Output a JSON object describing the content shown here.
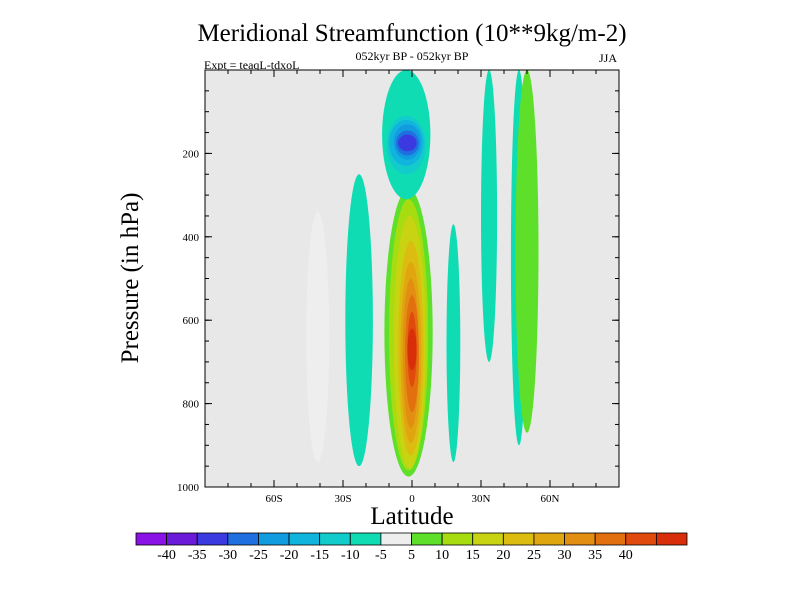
{
  "chart_data": {
    "type": "heatmap",
    "title": "Meridional Streamfunction (10**9kg/m-2)",
    "subtitle": "052kyr BP - 052kyr BP",
    "left_annotation": "Expt = teaqL-tdxoL",
    "right_annotation": "JJA",
    "xlabel": "Latitude",
    "ylabel": "Pressure (in hPa)",
    "xlim": [
      -90,
      90
    ],
    "ylim": [
      1000,
      0
    ],
    "x_ticks": [
      {
        "value": -60,
        "label": "60S"
      },
      {
        "value": -30,
        "label": "30S"
      },
      {
        "value": 0,
        "label": "0"
      },
      {
        "value": 30,
        "label": "30N"
      },
      {
        "value": 60,
        "label": "60N"
      }
    ],
    "y_ticks": [
      {
        "value": 200,
        "label": "200"
      },
      {
        "value": 400,
        "label": "400"
      },
      {
        "value": 600,
        "label": "600"
      },
      {
        "value": 800,
        "label": "800"
      },
      {
        "value": 1000,
        "label": "1000"
      }
    ],
    "background_color": "#e8e8e8",
    "colorbar": {
      "colors": [
        "#8a12e6",
        "#6a1ad8",
        "#3a3ae0",
        "#1f6fe0",
        "#129ce0",
        "#10b4dc",
        "#12cccc",
        "#10dcb4",
        "#eeeeee",
        "#5ee02a",
        "#a6dc10",
        "#c8d412",
        "#dcbc10",
        "#e0a610",
        "#e28e12",
        "#e2700e",
        "#e04a0c",
        "#d82e0a"
      ],
      "labels": [
        "-40",
        "-35",
        "-30",
        "-25",
        "-20",
        "-15",
        "-10",
        "-5",
        "5",
        "10",
        "15",
        "20",
        "25",
        "30",
        "35",
        "40"
      ]
    },
    "cells": [
      {
        "name": "cell-sh-midlat-1",
        "lat": [
          -46,
          -36
        ],
        "p": [
          340,
          940
        ],
        "level": 0
      },
      {
        "name": "cell-sh-subtrop-neg",
        "lat": [
          -29,
          -17
        ],
        "p": [
          250,
          950
        ],
        "level": -1
      },
      {
        "name": "cell-eq-pos-outer",
        "lat": [
          -12,
          9
        ],
        "p": [
          285,
          975
        ],
        "level": 1
      },
      {
        "name": "cell-eq-pos-2",
        "lat": [
          -10,
          7
        ],
        "p": [
          310,
          960
        ],
        "level": 2
      },
      {
        "name": "cell-eq-pos-3",
        "lat": [
          -8,
          6
        ],
        "p": [
          350,
          955
        ],
        "level": 3
      },
      {
        "name": "cell-eq-pos-4",
        "lat": [
          -6,
          5
        ],
        "p": [
          410,
          925
        ],
        "level": 4
      },
      {
        "name": "cell-eq-pos-5",
        "lat": [
          -5,
          4
        ],
        "p": [
          460,
          895
        ],
        "level": 5
      },
      {
        "name": "cell-eq-pos-6",
        "lat": [
          -4,
          3
        ],
        "p": [
          500,
          860
        ],
        "level": 6
      },
      {
        "name": "cell-eq-pos-7",
        "lat": [
          -3,
          3
        ],
        "p": [
          540,
          820
        ],
        "level": 7
      },
      {
        "name": "cell-eq-pos-8",
        "lat": [
          -2,
          2
        ],
        "p": [
          580,
          760
        ],
        "level": 8
      },
      {
        "name": "cell-eq-pos-9",
        "lat": [
          -2,
          2
        ],
        "p": [
          620,
          720
        ],
        "level": 9
      },
      {
        "name": "cell-upper-neg-outer",
        "lat": [
          -13,
          8
        ],
        "p": [
          0,
          310
        ],
        "level": -1
      },
      {
        "name": "cell-upper-neg-2",
        "lat": [
          -11,
          6
        ],
        "p": [
          110,
          250
        ],
        "level": -2
      },
      {
        "name": "cell-upper-neg-3",
        "lat": [
          -10,
          5
        ],
        "p": [
          120,
          230
        ],
        "level": -3
      },
      {
        "name": "cell-upper-neg-4",
        "lat": [
          -8,
          4
        ],
        "p": [
          130,
          215
        ],
        "level": -4
      },
      {
        "name": "cell-upper-neg-5",
        "lat": [
          -7,
          3
        ],
        "p": [
          145,
          205
        ],
        "level": -5
      },
      {
        "name": "cell-upper-neg-6",
        "lat": [
          -6,
          2
        ],
        "p": [
          155,
          195
        ],
        "level": -6
      },
      {
        "name": "cell-nh-subtrop-neg",
        "lat": [
          15,
          21
        ],
        "p": [
          370,
          940
        ],
        "level": -1
      },
      {
        "name": "cell-nh-upper-neg",
        "lat": [
          30,
          37
        ],
        "p": [
          0,
          700
        ],
        "level": -1
      },
      {
        "name": "cell-nh-midlat-neg",
        "lat": [
          43,
          50
        ],
        "p": [
          0,
          900
        ],
        "level": -1
      },
      {
        "name": "cell-nh-midlat-pos",
        "lat": [
          45,
          55
        ],
        "p": [
          0,
          870
        ],
        "level": 1
      }
    ]
  }
}
